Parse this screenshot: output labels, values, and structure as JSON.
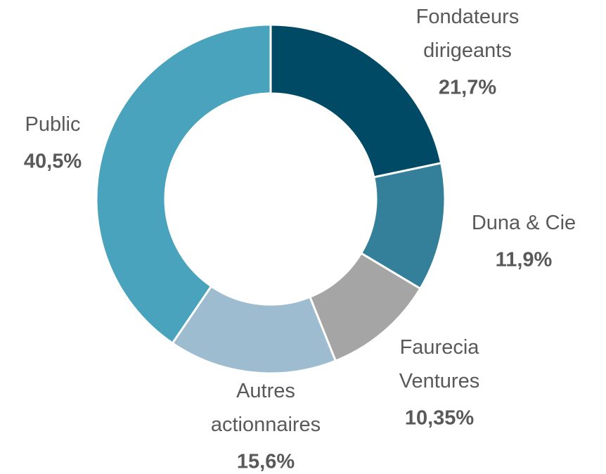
{
  "chart_data": {
    "type": "donut",
    "categories": [
      "Fondateurs\ndirigeants",
      "Duna & Cie",
      "Faurecia\nVentures",
      "Autres\nactionnaires",
      "Public"
    ],
    "values": [
      21.7,
      11.9,
      10.35,
      15.6,
      40.5
    ],
    "value_labels": [
      "21,7%",
      "11,9%",
      "10,35%",
      "15,6%",
      "40,5%"
    ],
    "colors": [
      "#004a66",
      "#347f99",
      "#a5a5a5",
      "#9dbcd0",
      "#4aa3bc"
    ]
  }
}
